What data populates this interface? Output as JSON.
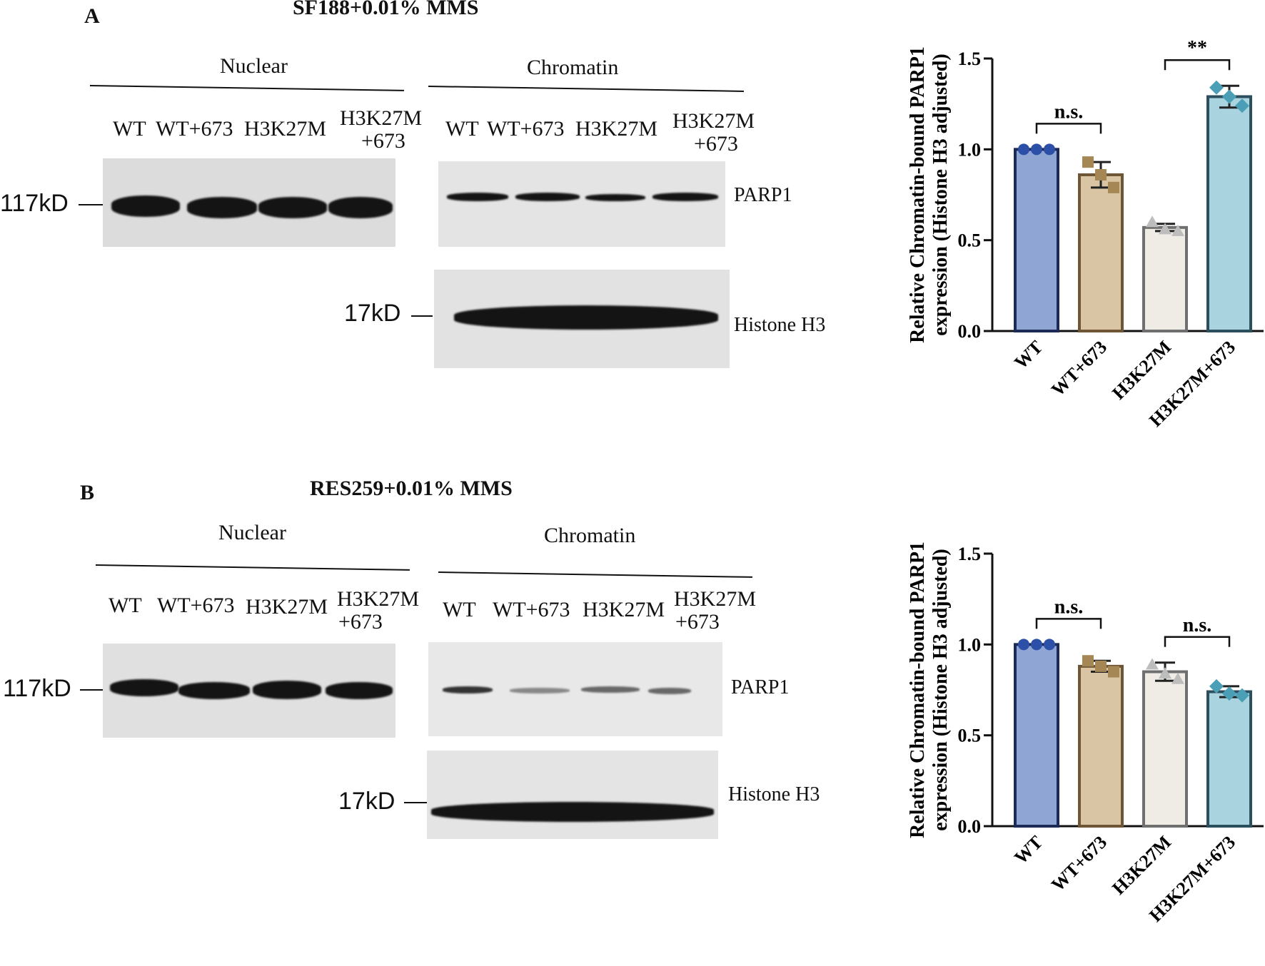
{
  "panel_a": {
    "letter": "A",
    "title": "SF188+0.01% MMS",
    "nuclear_label": "Nuclear",
    "chromatin_label": "Chromatin",
    "lanes": [
      "WT",
      "WT+673",
      "H3K27M"
    ],
    "lane4_line1": "H3K27M",
    "lane4_line2": "+673",
    "marker_117": "117kD",
    "marker_17": "17kD",
    "protein_parp1": "PARP1",
    "protein_h3": "Histone H3"
  },
  "panel_b": {
    "letter": "B",
    "title": "RES259+0.01% MMS",
    "nuclear_label": "Nuclear",
    "chromatin_label": "Chromatin",
    "lanes": [
      "WT",
      "WT+673",
      "H3K27M"
    ],
    "lane4_line1": "H3K27M",
    "lane4_line2": "+673",
    "marker_117": "117kD",
    "marker_17": "17kD",
    "protein_parp1": "PARP1",
    "protein_h3": "Histone H3"
  },
  "chart_data": [
    {
      "type": "bar",
      "title": "",
      "ylabel_line1": "Relative Chromatin-bound PARP1",
      "ylabel_line2": "expression (Histone H3 adjusted)",
      "categories": [
        "WT",
        "WT+673",
        "H3K27M",
        "H3K27M+673"
      ],
      "values": [
        1.0,
        0.86,
        0.57,
        1.29
      ],
      "errors": [
        0.0,
        0.07,
        0.02,
        0.06
      ],
      "points": [
        [
          1.0,
          1.0,
          1.0
        ],
        [
          0.93,
          0.86,
          0.79
        ],
        [
          0.6,
          0.56,
          0.55
        ],
        [
          1.34,
          1.29,
          1.24
        ]
      ],
      "markers": [
        "circle",
        "square",
        "triangle",
        "diamond"
      ],
      "ylim": [
        0,
        1.5
      ],
      "yticks": [
        "0.0",
        "0.5",
        "1.0",
        "1.5"
      ],
      "significance": [
        {
          "from": 0,
          "to": 1,
          "label": "n.s."
        },
        {
          "from": 2,
          "to": 3,
          "label": "**"
        }
      ],
      "colors": {
        "fill": [
          "#8fa6d4",
          "#d9c4a3",
          "#efece6",
          "#a9d3df"
        ],
        "stroke": [
          "#1d2a55",
          "#6e5535",
          "#6f6f6f",
          "#2b4f5c"
        ],
        "point": [
          "#2c4fa8",
          "#a58655",
          "#bdbdbd",
          "#4a9fb7"
        ]
      }
    },
    {
      "type": "bar",
      "title": "",
      "ylabel_line1": "Relative Chromatin-bound PARP1",
      "ylabel_line2": "expression (Histone H3 adjusted)",
      "categories": [
        "WT",
        "WT+673",
        "H3K27M",
        "H3K27M+673"
      ],
      "values": [
        1.0,
        0.88,
        0.85,
        0.74
      ],
      "errors": [
        0.0,
        0.03,
        0.05,
        0.03
      ],
      "points": [
        [
          1.0,
          1.0,
          1.0
        ],
        [
          0.91,
          0.88,
          0.85
        ],
        [
          0.89,
          0.84,
          0.81
        ],
        [
          0.77,
          0.73,
          0.72
        ]
      ],
      "markers": [
        "circle",
        "square",
        "triangle",
        "diamond"
      ],
      "ylim": [
        0,
        1.5
      ],
      "yticks": [
        "0.0",
        "0.5",
        "1.0",
        "1.5"
      ],
      "significance": [
        {
          "from": 0,
          "to": 1,
          "label": "n.s."
        },
        {
          "from": 2,
          "to": 3,
          "label": "n.s."
        }
      ],
      "colors": {
        "fill": [
          "#8fa6d4",
          "#d9c4a3",
          "#efece6",
          "#a9d3df"
        ],
        "stroke": [
          "#1d2a55",
          "#6e5535",
          "#6f6f6f",
          "#2b4f5c"
        ],
        "point": [
          "#2c4fa8",
          "#a58655",
          "#bdbdbd",
          "#4a9fb7"
        ]
      }
    }
  ]
}
